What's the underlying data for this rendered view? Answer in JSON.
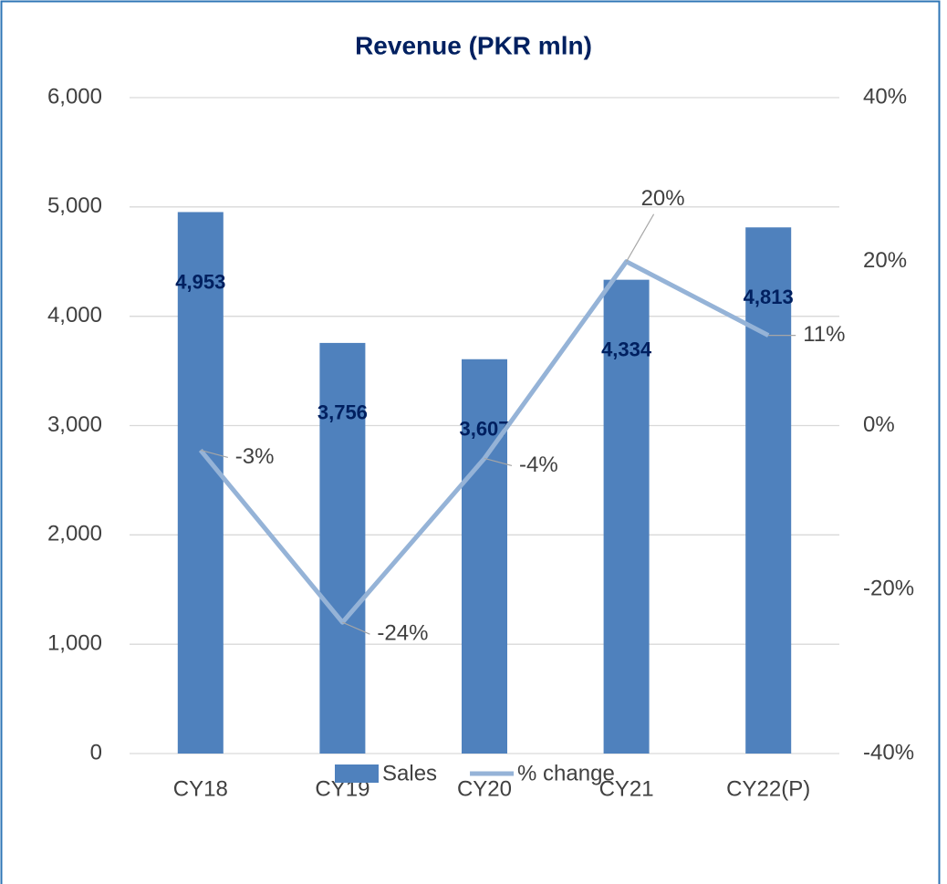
{
  "chart_data": {
    "type": "bar_line",
    "title": "Revenue (PKR mln)",
    "categories": [
      "CY18",
      "CY19",
      "CY20",
      "CY21",
      "CY22(P)"
    ],
    "series": [
      {
        "name": "Sales",
        "color": "#4f81bd",
        "type": "bar",
        "values": [
          4953,
          3756,
          3607,
          4334,
          4813
        ],
        "value_labels": [
          "4,953",
          "3,756",
          "3,607",
          "4,334",
          "4,813"
        ]
      },
      {
        "name": "% change",
        "color": "#95b3d7",
        "type": "line",
        "axis": "y2",
        "values": [
          -3,
          -24,
          -4,
          20,
          11
        ],
        "value_labels": [
          "-3%",
          "-24%",
          "-4%",
          "20%",
          "11%"
        ]
      }
    ],
    "ylim": [
      0,
      6000
    ],
    "yticks": [
      0,
      {
        "value": 1000,
        "label": "1,000"
      },
      {
        "value": 2000,
        "label": "2,000"
      },
      {
        "value": 3000,
        "label": "3,000"
      },
      {
        "value": 4000,
        "label": "4,000"
      },
      {
        "value": 5000,
        "label": "5,000"
      },
      {
        "value": 6000,
        "label": "6,000"
      }
    ],
    "y2lim": [
      -40,
      40
    ],
    "y2ticks": [
      {
        "value": -40,
        "label": "-40%"
      },
      {
        "value": -20,
        "label": "-20%"
      },
      {
        "value": 0,
        "label": "0%"
      },
      {
        "value": 20,
        "label": "20%"
      },
      {
        "value": 40,
        "label": "40%"
      }
    ],
    "grid": true
  }
}
